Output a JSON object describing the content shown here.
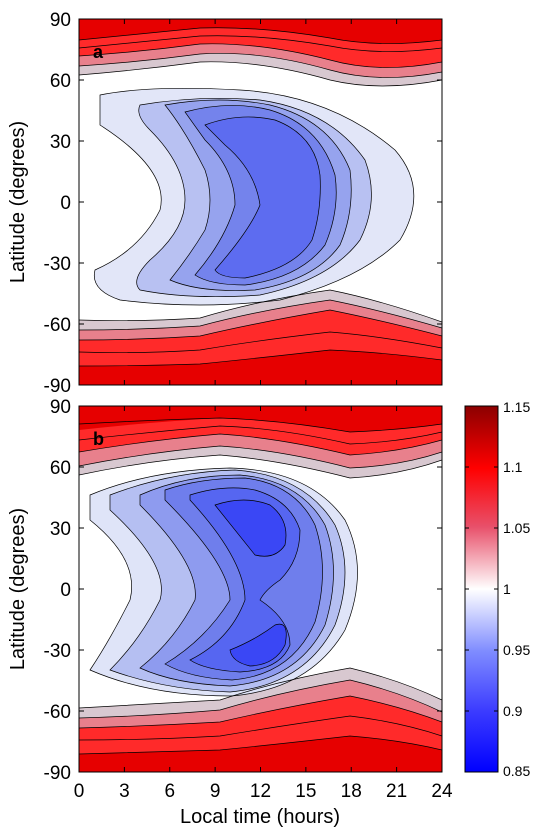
{
  "chart_data": [
    {
      "type": "heatmap",
      "panel_label": "a",
      "xlabel": "",
      "ylabel": "Latitude (degrees)",
      "xlim": [
        0,
        24
      ],
      "ylim": [
        -90,
        90
      ],
      "xticks": [
        "0",
        "3",
        "6",
        "9",
        "12",
        "15",
        "18",
        "21",
        "24"
      ],
      "yticks": [
        "90",
        "60",
        "30",
        "0",
        "-30",
        "-60",
        "-90"
      ],
      "xtick_labels_shown": false,
      "min_region": {
        "x": 12,
        "y": 0,
        "value": 0.93
      },
      "features": [
        {
          "kind": "low",
          "x": 12,
          "y": 0,
          "value": 0.93
        },
        {
          "kind": "high-band",
          "y": 75,
          "value": 1.12
        },
        {
          "kind": "high-band",
          "y": -75,
          "value": 1.12
        }
      ]
    },
    {
      "type": "heatmap",
      "panel_label": "b",
      "xlabel": "Local time (hours)",
      "ylabel": "Latitude (degrees)",
      "xlim": [
        0,
        24
      ],
      "ylim": [
        -90,
        90
      ],
      "xticks": [
        "0",
        "3",
        "6",
        "9",
        "12",
        "15",
        "18",
        "21",
        "24"
      ],
      "yticks": [
        "90",
        "60",
        "30",
        "0",
        "-30",
        "-60",
        "-90"
      ],
      "xtick_labels_shown": true,
      "min_region": {
        "x": 11,
        "y": 25,
        "value": 0.89
      },
      "features": [
        {
          "kind": "low",
          "x": 11,
          "y": 25,
          "value": 0.89
        },
        {
          "kind": "low",
          "x": 11,
          "y": -30,
          "value": 0.89
        },
        {
          "kind": "high-band",
          "y": 75,
          "value": 1.12
        },
        {
          "kind": "high-band",
          "y": -75,
          "value": 1.12
        }
      ]
    }
  ],
  "colorbar": {
    "range": [
      0.85,
      1.15
    ],
    "ticks": [
      "1.15",
      "1.1",
      "1.05",
      "1",
      "0.95",
      "0.9",
      "0.85"
    ],
    "colors": {
      "low": "#0000ff",
      "mid": "#ffffff",
      "high": "#8b0000"
    }
  }
}
